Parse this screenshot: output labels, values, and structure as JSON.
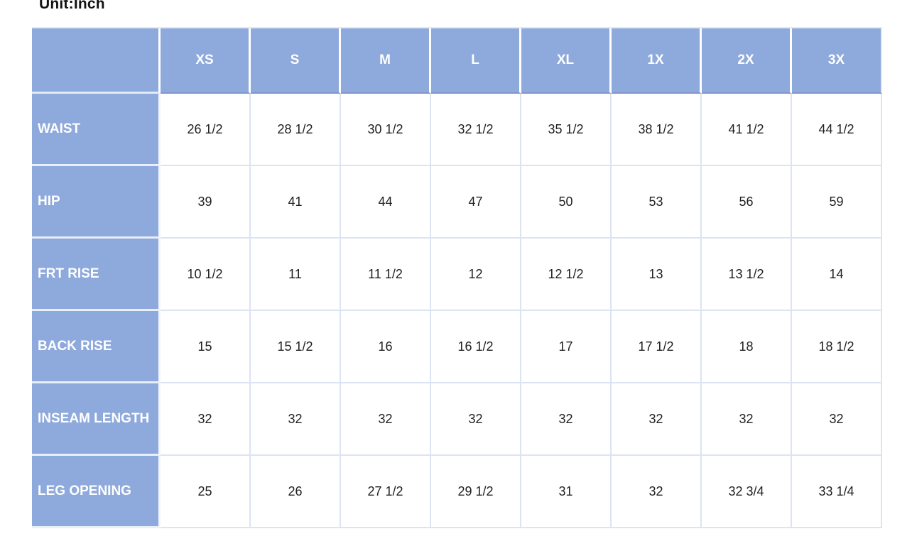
{
  "unit_label": "Unit:Inch",
  "colors": {
    "header_bg": "#8EA9DB",
    "header_text": "#FFFFFF",
    "body_text": "#1F1F1F",
    "body_border": "#DCE4F3",
    "header_underline": "#7E97CD"
  },
  "chart_data": {
    "type": "table",
    "title": "Unit:Inch",
    "columns": [
      "",
      "XS",
      "S",
      "M",
      "L",
      "XL",
      "1X",
      "2X",
      "3X"
    ],
    "rows": [
      {
        "label": "WAIST",
        "values": [
          "26 1/2",
          "28 1/2",
          "30 1/2",
          "32 1/2",
          "35 1/2",
          "38 1/2",
          "41 1/2",
          "44 1/2"
        ]
      },
      {
        "label": "HIP",
        "values": [
          "39",
          "41",
          "44",
          "47",
          "50",
          "53",
          "56",
          "59"
        ]
      },
      {
        "label": "FRT RISE",
        "values": [
          "10 1/2",
          "11",
          "11 1/2",
          "12",
          "12 1/2",
          "13",
          "13 1/2",
          "14"
        ]
      },
      {
        "label": "BACK RISE",
        "values": [
          "15",
          "15 1/2",
          "16",
          "16 1/2",
          "17",
          "17 1/2",
          "18",
          "18 1/2"
        ]
      },
      {
        "label": "INSEAM LENGTH",
        "values": [
          "32",
          "32",
          "32",
          "32",
          "32",
          "32",
          "32",
          "32"
        ]
      },
      {
        "label": "LEG OPENING",
        "values": [
          "25",
          "26",
          "27 1/2",
          "29 1/2",
          "31",
          "32",
          "32 3/4",
          "33 1/4"
        ]
      }
    ]
  }
}
